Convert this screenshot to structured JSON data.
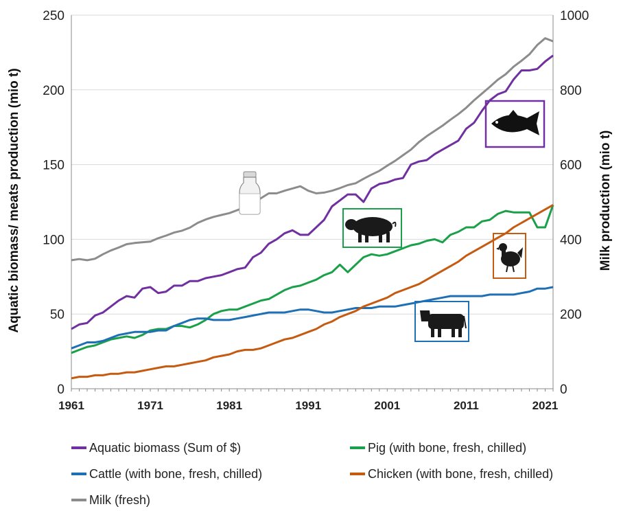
{
  "chart_data": {
    "type": "line",
    "xlabel": "",
    "ylabel": "Aquatic biomass/ meats  production (mio t)",
    "y2label": "Milk production (mio t)",
    "xlim": [
      1961,
      2022
    ],
    "ylim": [
      0,
      250
    ],
    "y2lim": [
      0,
      1000
    ],
    "x_ticks": [
      1961,
      1971,
      1981,
      1991,
      2001,
      2011,
      2021
    ],
    "y_ticks": [
      0,
      50,
      100,
      150,
      200,
      250
    ],
    "y2_ticks": [
      0,
      200,
      400,
      600,
      800,
      1000
    ],
    "grid": "horizontal",
    "legend_position": "bottom",
    "series": [
      {
        "name": "Aquatic biomass (Sum of $)",
        "axis": "left",
        "color": "#7030a0",
        "icon": "fish-icon",
        "x": [
          1961,
          1962,
          1963,
          1964,
          1965,
          1966,
          1967,
          1968,
          1969,
          1970,
          1971,
          1972,
          1973,
          1974,
          1975,
          1976,
          1977,
          1978,
          1979,
          1980,
          1981,
          1982,
          1983,
          1984,
          1985,
          1986,
          1987,
          1988,
          1989,
          1990,
          1991,
          1992,
          1993,
          1994,
          1995,
          1996,
          1997,
          1998,
          1999,
          2000,
          2001,
          2002,
          2003,
          2004,
          2005,
          2006,
          2007,
          2008,
          2009,
          2010,
          2011,
          2012,
          2013,
          2014,
          2015,
          2016,
          2017,
          2018,
          2019,
          2020,
          2021,
          2022
        ],
        "y": [
          40,
          43,
          44,
          49,
          51,
          55,
          59,
          62,
          61,
          67,
          68,
          64,
          65,
          69,
          69,
          72,
          72,
          74,
          75,
          76,
          78,
          80,
          81,
          88,
          91,
          97,
          100,
          104,
          106,
          103,
          103,
          108,
          113,
          122,
          126,
          130,
          130,
          125,
          134,
          137,
          138,
          140,
          141,
          150,
          152,
          153,
          157,
          160,
          163,
          166,
          174,
          178,
          186,
          193,
          197,
          199,
          207,
          213,
          213,
          214,
          219,
          223
        ]
      },
      {
        "name": "Pig (with bone, fresh, chilled)",
        "axis": "left",
        "color": "#1aa049",
        "icon": "pig-icon",
        "x": [
          1961,
          1962,
          1963,
          1964,
          1965,
          1966,
          1967,
          1968,
          1969,
          1970,
          1971,
          1972,
          1973,
          1974,
          1975,
          1976,
          1977,
          1978,
          1979,
          1980,
          1981,
          1982,
          1983,
          1984,
          1985,
          1986,
          1987,
          1988,
          1989,
          1990,
          1991,
          1992,
          1993,
          1994,
          1995,
          1996,
          1997,
          1998,
          1999,
          2000,
          2001,
          2002,
          2003,
          2004,
          2005,
          2006,
          2007,
          2008,
          2009,
          2010,
          2011,
          2012,
          2013,
          2014,
          2015,
          2016,
          2017,
          2018,
          2019,
          2020,
          2021,
          2022
        ],
        "y": [
          24,
          26,
          28,
          29,
          31,
          33,
          34,
          35,
          34,
          36,
          39,
          40,
          40,
          42,
          42,
          41,
          43,
          46,
          50,
          52,
          53,
          53,
          55,
          57,
          59,
          60,
          63,
          66,
          68,
          69,
          71,
          73,
          76,
          78,
          83,
          78,
          83,
          88,
          90,
          89,
          90,
          92,
          94,
          96,
          97,
          99,
          100,
          98,
          103,
          105,
          108,
          108,
          112,
          113,
          117,
          119,
          118,
          118,
          118,
          108,
          108,
          123
        ]
      },
      {
        "name": "Cattle (with bone, fresh, chilled)",
        "axis": "left",
        "color": "#1f6fb5",
        "icon": "cow-icon",
        "x": [
          1961,
          1962,
          1963,
          1964,
          1965,
          1966,
          1967,
          1968,
          1969,
          1970,
          1971,
          1972,
          1973,
          1974,
          1975,
          1976,
          1977,
          1978,
          1979,
          1980,
          1981,
          1982,
          1983,
          1984,
          1985,
          1986,
          1987,
          1988,
          1989,
          1990,
          1991,
          1992,
          1993,
          1994,
          1995,
          1996,
          1997,
          1998,
          1999,
          2000,
          2001,
          2002,
          2003,
          2004,
          2005,
          2006,
          2007,
          2008,
          2009,
          2010,
          2011,
          2012,
          2013,
          2014,
          2015,
          2016,
          2017,
          2018,
          2019,
          2020,
          2021,
          2022
        ],
        "y": [
          27,
          29,
          31,
          31,
          32,
          34,
          36,
          37,
          38,
          38,
          38,
          39,
          39,
          42,
          44,
          46,
          47,
          47,
          46,
          46,
          46,
          47,
          48,
          49,
          50,
          51,
          51,
          51,
          52,
          53,
          53,
          52,
          51,
          51,
          52,
          53,
          54,
          54,
          54,
          55,
          55,
          55,
          56,
          57,
          58,
          59,
          60,
          61,
          62,
          62,
          62,
          62,
          62,
          63,
          63,
          63,
          63,
          64,
          65,
          67,
          67,
          68
        ]
      },
      {
        "name": "Chicken (with bone, fresh, chilled)",
        "axis": "left",
        "color": "#c55a11",
        "icon": "chicken-icon",
        "x": [
          1961,
          1962,
          1963,
          1964,
          1965,
          1966,
          1967,
          1968,
          1969,
          1970,
          1971,
          1972,
          1973,
          1974,
          1975,
          1976,
          1977,
          1978,
          1979,
          1980,
          1981,
          1982,
          1983,
          1984,
          1985,
          1986,
          1987,
          1988,
          1989,
          1990,
          1991,
          1992,
          1993,
          1994,
          1995,
          1996,
          1997,
          1998,
          1999,
          2000,
          2001,
          2002,
          2003,
          2004,
          2005,
          2006,
          2007,
          2008,
          2009,
          2010,
          2011,
          2012,
          2013,
          2014,
          2015,
          2016,
          2017,
          2018,
          2019,
          2020,
          2021,
          2022
        ],
        "y": [
          7,
          8,
          8,
          9,
          9,
          10,
          10,
          11,
          11,
          12,
          13,
          14,
          15,
          15,
          16,
          17,
          18,
          19,
          21,
          22,
          23,
          25,
          26,
          26,
          27,
          29,
          31,
          33,
          34,
          36,
          38,
          40,
          43,
          45,
          48,
          50,
          52,
          55,
          57,
          59,
          61,
          64,
          66,
          68,
          70,
          73,
          76,
          79,
          82,
          85,
          89,
          92,
          95,
          98,
          101,
          104,
          108,
          111,
          114,
          117,
          120,
          123
        ]
      },
      {
        "name": "Milk (fresh)",
        "axis": "right",
        "color": "#8c8c8c",
        "icon": "milk-bottle-icon",
        "x": [
          1961,
          1962,
          1963,
          1964,
          1965,
          1966,
          1967,
          1968,
          1969,
          1970,
          1971,
          1972,
          1973,
          1974,
          1975,
          1976,
          1977,
          1978,
          1979,
          1980,
          1981,
          1982,
          1983,
          1984,
          1985,
          1986,
          1987,
          1988,
          1989,
          1990,
          1991,
          1992,
          1993,
          1994,
          1995,
          1996,
          1997,
          1998,
          1999,
          2000,
          2001,
          2002,
          2003,
          2004,
          2005,
          2006,
          2007,
          2008,
          2009,
          2010,
          2011,
          2012,
          2013,
          2014,
          2015,
          2016,
          2017,
          2018,
          2019,
          2020,
          2021,
          2022
        ],
        "y": [
          344,
          347,
          344,
          348,
          360,
          370,
          378,
          387,
          390,
          392,
          394,
          403,
          410,
          418,
          423,
          431,
          444,
          453,
          460,
          465,
          470,
          478,
          486,
          496,
          510,
          523,
          523,
          530,
          536,
          542,
          530,
          523,
          525,
          530,
          537,
          545,
          550,
          562,
          573,
          583,
          597,
          610,
          625,
          640,
          660,
          676,
          690,
          704,
          720,
          735,
          752,
          772,
          790,
          808,
          827,
          842,
          862,
          878,
          895,
          920,
          938,
          930
        ]
      }
    ]
  }
}
